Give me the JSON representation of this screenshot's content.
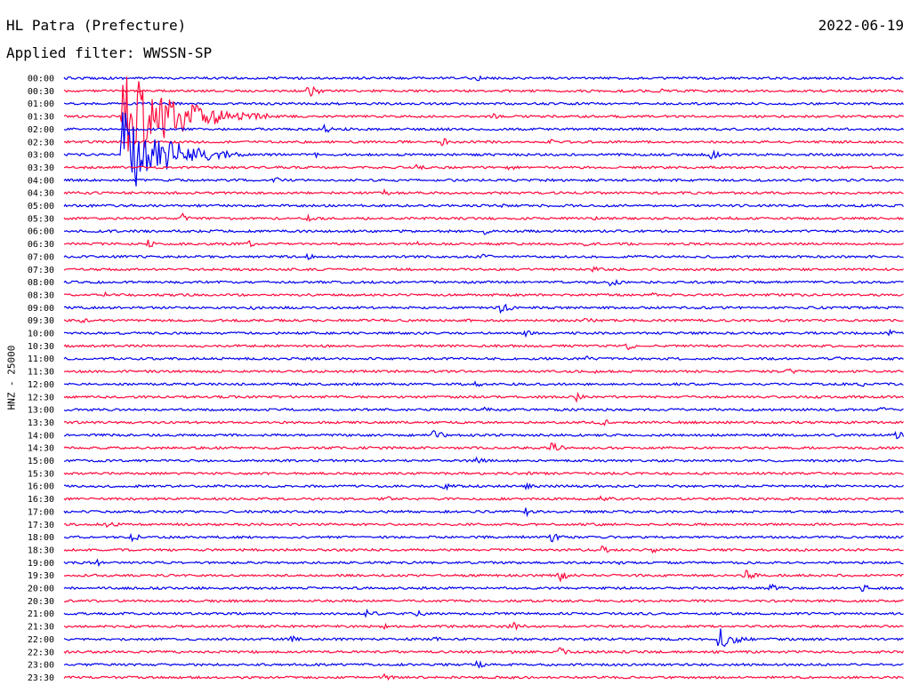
{
  "header": {
    "station": "HL Patra (Prefecture)",
    "date": "2022-06-19",
    "filter": "Applied filter: WWSSN-SP"
  },
  "colors": {
    "even": "#0000ee",
    "odd": "#ff0a3c"
  },
  "chart_data": {
    "type": "line",
    "ylabel": "HNZ - 25000",
    "rows": [
      "00:00",
      "00:30",
      "01:00",
      "01:30",
      "02:00",
      "02:30",
      "03:00",
      "03:30",
      "04:00",
      "04:30",
      "05:00",
      "05:30",
      "06:00",
      "06:30",
      "07:00",
      "07:30",
      "08:00",
      "08:30",
      "09:00",
      "09:30",
      "10:00",
      "10:30",
      "11:00",
      "11:30",
      "12:00",
      "12:30",
      "13:00",
      "13:30",
      "14:00",
      "14:30",
      "15:00",
      "15:30",
      "16:00",
      "16:30",
      "17:00",
      "17:30",
      "18:00",
      "18:30",
      "19:00",
      "19:30",
      "20:00",
      "20:30",
      "21:00",
      "21:30",
      "22:00",
      "22:30",
      "23:00",
      "23:30"
    ],
    "bursts": [
      [
        [
          0.49,
          4
        ]
      ],
      [
        [
          0.29,
          8
        ],
        [
          0.71,
          3
        ]
      ],
      [
        [
          0.53,
          3
        ]
      ],
      [
        [
          0.07,
          60
        ],
        [
          0.51,
          4
        ]
      ],
      [
        [
          0.31,
          5
        ]
      ],
      [
        [
          0.45,
          5
        ],
        [
          0.58,
          4
        ]
      ],
      [
        [
          0.07,
          50
        ],
        [
          0.3,
          5
        ],
        [
          0.77,
          6
        ]
      ],
      [
        [
          0.42,
          4
        ],
        [
          0.53,
          4
        ]
      ],
      [
        [
          0.25,
          6
        ],
        [
          0.95,
          3
        ]
      ],
      [
        [
          0.38,
          4
        ]
      ],
      [
        [
          0.52,
          4
        ]
      ],
      [
        [
          0.14,
          7
        ],
        [
          0.29,
          4
        ],
        [
          0.63,
          3
        ],
        [
          0.79,
          3
        ]
      ],
      [
        [
          0.5,
          4
        ]
      ],
      [
        [
          0.1,
          5
        ],
        [
          0.22,
          4
        ],
        [
          0.42,
          3
        ],
        [
          0.62,
          3
        ]
      ],
      [
        [
          0.29,
          4
        ],
        [
          0.5,
          4
        ]
      ],
      [
        [
          0.63,
          4
        ]
      ],
      [
        [
          0.65,
          6
        ]
      ],
      [
        [
          0.05,
          4
        ],
        [
          0.7,
          3
        ]
      ],
      [
        [
          0.22,
          4
        ],
        [
          0.52,
          7
        ]
      ],
      [
        [
          0.02,
          5
        ],
        [
          0.62,
          5
        ]
      ],
      [
        [
          0.55,
          4
        ],
        [
          0.98,
          5
        ]
      ],
      [
        [
          0.67,
          5
        ]
      ],
      [
        [
          0.62,
          4
        ],
        [
          0.92,
          3
        ]
      ],
      [
        [
          0.63,
          3
        ],
        [
          0.86,
          5
        ]
      ],
      [
        [
          0.49,
          4
        ],
        [
          0.95,
          3
        ]
      ],
      [
        [
          0.61,
          5
        ]
      ],
      [
        [
          0.5,
          4
        ],
        [
          0.97,
          5
        ]
      ],
      [
        [
          0.64,
          5
        ]
      ],
      [
        [
          0.44,
          7
        ],
        [
          0.99,
          6
        ]
      ],
      [
        [
          0.58,
          7
        ]
      ],
      [
        [
          0.49,
          5
        ]
      ],
      [
        [
          0.55,
          3
        ]
      ],
      [
        [
          0.45,
          6
        ],
        [
          0.55,
          4
        ]
      ],
      [
        [
          0.38,
          5
        ],
        [
          0.64,
          6
        ]
      ],
      [
        [
          0.55,
          5
        ]
      ],
      [
        [
          0.05,
          6
        ],
        [
          0.22,
          3
        ]
      ],
      [
        [
          0.08,
          6
        ],
        [
          0.54,
          4
        ],
        [
          0.58,
          6
        ]
      ],
      [
        [
          0.64,
          5
        ],
        [
          0.7,
          4
        ]
      ],
      [
        [
          0.04,
          5
        ],
        [
          0.66,
          3
        ]
      ],
      [
        [
          0.59,
          7
        ],
        [
          0.81,
          7
        ]
      ],
      [
        [
          0.84,
          6
        ],
        [
          0.95,
          5
        ]
      ],
      [
        [
          0.5,
          2
        ]
      ],
      [
        [
          0.36,
          6
        ],
        [
          0.42,
          5
        ]
      ],
      [
        [
          0.38,
          4
        ],
        [
          0.53,
          7
        ]
      ],
      [
        [
          0.27,
          5
        ],
        [
          0.44,
          4
        ],
        [
          0.78,
          14
        ]
      ],
      [
        [
          0.53,
          3
        ],
        [
          0.59,
          7
        ]
      ],
      [
        [
          0.49,
          5
        ]
      ],
      [
        [
          0.38,
          5
        ]
      ]
    ]
  }
}
